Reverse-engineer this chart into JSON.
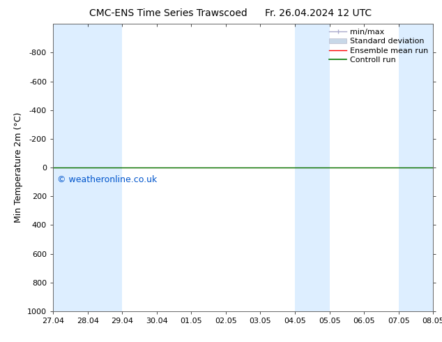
{
  "title": "CMC-ENS Time Series Trawscoed",
  "title_right": "Fr. 26.04.2024 12 UTC",
  "ylabel": "Min Temperature 2m (°C)",
  "watermark": "© weatheronline.co.uk",
  "ylim_bottom": 1000,
  "ylim_top": -1000,
  "yticks": [
    -800,
    -600,
    -400,
    -200,
    0,
    200,
    400,
    600,
    800,
    1000
  ],
  "x_labels": [
    "27.04",
    "28.04",
    "29.04",
    "30.04",
    "01.05",
    "02.05",
    "03.05",
    "04.05",
    "05.05",
    "06.05",
    "07.05",
    "08.05"
  ],
  "x_values": [
    0,
    1,
    2,
    3,
    4,
    5,
    6,
    7,
    8,
    9,
    10,
    11
  ],
  "xlim": [
    0,
    11
  ],
  "shaded_bands": [
    {
      "x_start": 0,
      "x_end": 1,
      "color": "#ddeeff"
    },
    {
      "x_start": 1,
      "x_end": 2,
      "color": "#ddeeff"
    },
    {
      "x_start": 7,
      "x_end": 8,
      "color": "#ddeeff"
    },
    {
      "x_start": 10,
      "x_end": 11,
      "color": "#ddeeff"
    }
  ],
  "control_run_y": 0,
  "ensemble_mean_y": 0,
  "minmax_color": "#aaaacc",
  "std_dev_color": "#c8d8e8",
  "ensemble_mean_color": "#ff0000",
  "control_run_color": "#007700",
  "background_color": "#ffffff",
  "plot_bg_color": "#ffffff",
  "legend_entries": [
    "min/max",
    "Standard deviation",
    "Ensemble mean run",
    "Controll run"
  ],
  "font_size_title": 10,
  "font_size_axis": 9,
  "font_size_ticks": 8,
  "font_size_legend": 8,
  "font_size_watermark": 9,
  "watermark_color": "#0055cc"
}
